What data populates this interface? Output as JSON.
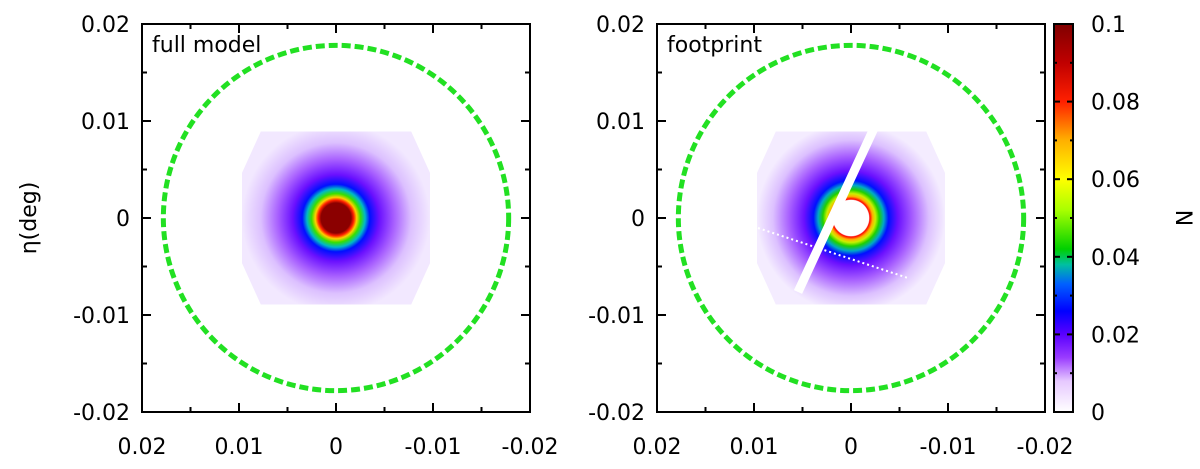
{
  "chart_data": [
    {
      "type": "heatmap",
      "panel_label": "full model",
      "title": "",
      "xlabel": "",
      "ylabel": "η(deg)",
      "xlim": [
        0.02,
        -0.02
      ],
      "ylim": [
        -0.02,
        0.02
      ],
      "x_ticks": [
        0.02,
        0.01,
        0,
        -0.01,
        -0.02
      ],
      "x_tick_labels": [
        "0.02",
        "0.01",
        "0",
        "-0.01",
        "-0.02"
      ],
      "y_ticks": [
        0.02,
        0.01,
        0,
        -0.01,
        -0.02
      ],
      "y_tick_labels": [
        "0.02",
        "0.01",
        "0",
        "-0.01",
        "-0.02"
      ],
      "density_peak": 0.1,
      "density_extent_radius": 0.01,
      "footprint_circle_radius": 0.0178,
      "footprint_circle_color": "#22e022",
      "footprint_circle_style": "dashed"
    },
    {
      "type": "heatmap",
      "panel_label": "footprint",
      "title": "",
      "xlabel": "",
      "ylabel": "",
      "xlim": [
        0.02,
        -0.02
      ],
      "ylim": [
        -0.02,
        0.02
      ],
      "x_ticks": [
        0.02,
        0.01,
        0,
        -0.01,
        -0.02
      ],
      "x_tick_labels": [
        "0.02",
        "0.01",
        "0",
        "-0.01",
        "-0.02"
      ],
      "y_ticks": [
        0.02,
        0.01,
        0,
        -0.01,
        -0.02
      ],
      "y_tick_labels": [
        "0.02",
        "0.01",
        "0",
        "-0.01",
        "-0.02"
      ],
      "density_peak": 0.1,
      "central_hole_radius": 0.002,
      "footprint_circle_radius": 0.0178,
      "footprint_circle_color": "#22e022",
      "footprint_circle_style": "dashed",
      "gaps": [
        "chip gap (diagonal)",
        "dotted gap"
      ]
    }
  ],
  "colorbar": {
    "label": "N",
    "range": [
      0,
      0.1
    ],
    "ticks": [
      0,
      0.02,
      0.04,
      0.06,
      0.08,
      0.1
    ],
    "tick_labels": [
      "0",
      "0.02",
      "0.04",
      "0.06",
      "0.08",
      "0.1"
    ],
    "palette": [
      "#ffffff",
      "#e6c8ff",
      "#9a3cff",
      "#5a00ff",
      "#0000ff",
      "#00b0c8",
      "#00d000",
      "#a8ff00",
      "#ffff00",
      "#ffb000",
      "#ff3000",
      "#c00000",
      "#800000"
    ]
  }
}
